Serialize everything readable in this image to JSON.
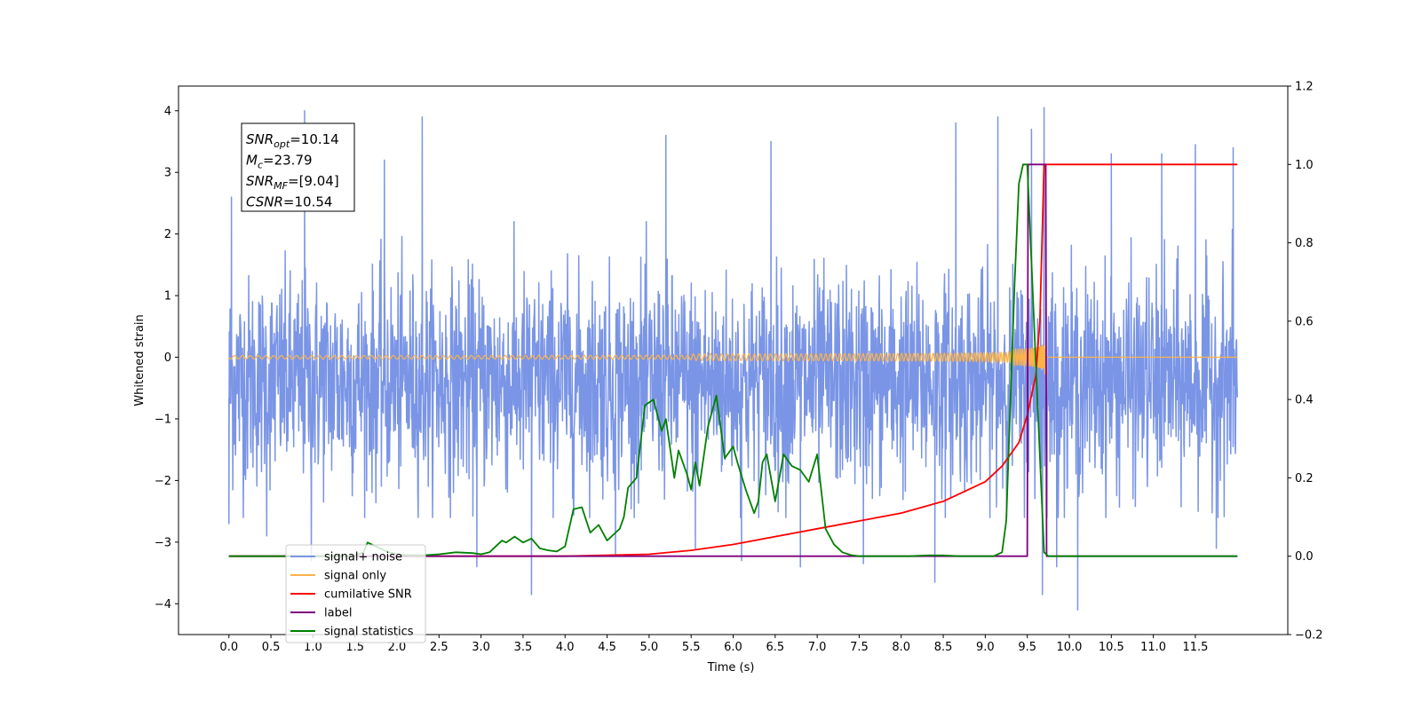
{
  "chart_data": {
    "type": "line",
    "xlabel": "Time (s)",
    "ylabel_left": "Whitened strain",
    "ylabel_right": "",
    "xlim": [
      -0.6,
      12.6
    ],
    "ylim_left": [
      -4.5,
      4.4
    ],
    "ylim_right": [
      -0.2,
      1.2
    ],
    "x_ticks": [
      "0.0",
      "0.5",
      "1.0",
      "1.5",
      "2.0",
      "2.5",
      "3.0",
      "3.5",
      "4.0",
      "4.5",
      "5.0",
      "5.5",
      "6.0",
      "6.5",
      "7.0",
      "7.5",
      "8.0",
      "8.5",
      "9.0",
      "9.5",
      "10.0",
      "10.5",
      "11.0",
      "11.5"
    ],
    "y_ticks_left": [
      "4",
      "3",
      "2",
      "1",
      "0",
      "−1",
      "−2",
      "−3",
      "−4"
    ],
    "y_ticks_right": [
      "1.2",
      "1.0",
      "0.8",
      "0.6",
      "0.4",
      "0.2",
      "0.0",
      "−0.2"
    ],
    "grid": false,
    "legend_position": "lower-left",
    "annotation_box": {
      "lines": [
        {
          "sym": "SNR",
          "sub": "opt",
          "value": "=10.14"
        },
        {
          "sym": "M",
          "sub": "c",
          "value": "=23.79"
        },
        {
          "sym": "SNR",
          "sub": "MF",
          "value": "=[9.04]"
        },
        {
          "sym": "CSNR",
          "sub": "",
          "value": "=10.54"
        }
      ]
    },
    "series": [
      {
        "name": "signal+ noise",
        "axis": "left",
        "color": "#7a95e6",
        "render": "noise",
        "x_range": [
          0.0,
          12.0
        ],
        "typical_range": [
          -2.2,
          1.4
        ],
        "extreme_points": [
          [
            0.0,
            -2.7
          ],
          [
            0.03,
            2.6
          ],
          [
            0.45,
            -2.9
          ],
          [
            0.9,
            4.0
          ],
          [
            0.98,
            -3.3
          ],
          [
            1.85,
            3.2
          ],
          [
            2.3,
            3.9
          ],
          [
            2.95,
            -3.4
          ],
          [
            3.6,
            -3.85
          ],
          [
            4.6,
            -3.2
          ],
          [
            5.2,
            3.6
          ],
          [
            5.55,
            -3.1
          ],
          [
            6.1,
            -3.3
          ],
          [
            6.45,
            3.5
          ],
          [
            6.8,
            -3.4
          ],
          [
            7.55,
            -3.35
          ],
          [
            8.4,
            -3.65
          ],
          [
            8.65,
            3.8
          ],
          [
            9.15,
            3.9
          ],
          [
            9.55,
            3.7
          ],
          [
            9.7,
            4.05
          ],
          [
            9.68,
            -3.85
          ],
          [
            9.85,
            -3.4
          ],
          [
            10.1,
            -4.1
          ],
          [
            10.5,
            3.3
          ],
          [
            11.1,
            3.3
          ],
          [
            11.5,
            3.45
          ],
          [
            11.75,
            -3.1
          ],
          [
            11.95,
            3.4
          ]
        ]
      },
      {
        "name": "signal only",
        "axis": "left",
        "color": "#ffb347",
        "render": "chirp",
        "x_range": [
          0.0,
          12.0
        ],
        "merger_time": 9.72,
        "peak_amplitude": 0.55
      },
      {
        "name": "cumilative SNR",
        "axis": "right",
        "color": "#ff0000",
        "x": [
          0.0,
          4.0,
          5.0,
          5.5,
          6.0,
          6.5,
          7.0,
          7.5,
          8.0,
          8.5,
          9.0,
          9.2,
          9.4,
          9.5,
          9.6,
          9.65,
          9.7,
          12.0
        ],
        "values": [
          0.0,
          0.0,
          0.005,
          0.015,
          0.03,
          0.05,
          0.07,
          0.09,
          0.11,
          0.14,
          0.19,
          0.23,
          0.29,
          0.36,
          0.46,
          0.6,
          1.0,
          1.0
        ]
      },
      {
        "name": "label",
        "axis": "right",
        "color": "#800080",
        "x": [
          0.0,
          9.5,
          9.51,
          9.72,
          9.73,
          12.0
        ],
        "values": [
          0.0,
          0.0,
          1.0,
          1.0,
          0.0,
          0.0
        ]
      },
      {
        "name": "signal statistics",
        "axis": "right",
        "color": "#008000",
        "x": [
          0.0,
          1.4,
          1.5,
          1.6,
          1.65,
          1.7,
          1.8,
          1.9,
          2.0,
          2.1,
          2.3,
          2.5,
          2.7,
          2.9,
          3.0,
          3.1,
          3.2,
          3.25,
          3.3,
          3.4,
          3.5,
          3.6,
          3.7,
          3.8,
          3.9,
          4.0,
          4.1,
          4.2,
          4.3,
          4.4,
          4.5,
          4.6,
          4.65,
          4.7,
          4.75,
          4.85,
          4.95,
          5.05,
          5.15,
          5.2,
          5.3,
          5.35,
          5.45,
          5.5,
          5.55,
          5.6,
          5.7,
          5.8,
          5.9,
          6.0,
          6.05,
          6.15,
          6.25,
          6.3,
          6.35,
          6.4,
          6.5,
          6.6,
          6.7,
          6.8,
          6.9,
          7.0,
          7.1,
          7.2,
          7.3,
          7.4,
          7.5,
          7.7,
          7.9,
          8.1,
          8.3,
          8.5,
          8.7,
          8.9,
          9.0,
          9.1,
          9.2,
          9.25,
          9.3,
          9.35,
          9.4,
          9.45,
          9.5,
          9.6,
          9.7,
          9.75,
          9.8,
          9.85,
          10.0,
          12.0
        ],
        "values": [
          0.0,
          0.0,
          0.002,
          0.01,
          0.035,
          0.03,
          0.02,
          0.01,
          0.005,
          0.003,
          0.002,
          0.005,
          0.01,
          0.008,
          0.005,
          0.01,
          0.03,
          0.04,
          0.035,
          0.05,
          0.035,
          0.045,
          0.02,
          0.015,
          0.012,
          0.025,
          0.12,
          0.125,
          0.06,
          0.08,
          0.04,
          0.06,
          0.07,
          0.1,
          0.175,
          0.2,
          0.385,
          0.4,
          0.32,
          0.35,
          0.2,
          0.27,
          0.21,
          0.17,
          0.24,
          0.18,
          0.33,
          0.41,
          0.25,
          0.28,
          0.24,
          0.17,
          0.11,
          0.14,
          0.24,
          0.26,
          0.14,
          0.26,
          0.23,
          0.22,
          0.19,
          0.26,
          0.07,
          0.03,
          0.01,
          0.003,
          0.0,
          0.0,
          0.0,
          0.0,
          0.002,
          0.002,
          0.0,
          0.0,
          0.0,
          0.0,
          0.01,
          0.09,
          0.4,
          0.7,
          0.95,
          1.0,
          1.0,
          0.5,
          0.01,
          0.0,
          0.0,
          0.0,
          0.0,
          0.0
        ]
      }
    ]
  }
}
